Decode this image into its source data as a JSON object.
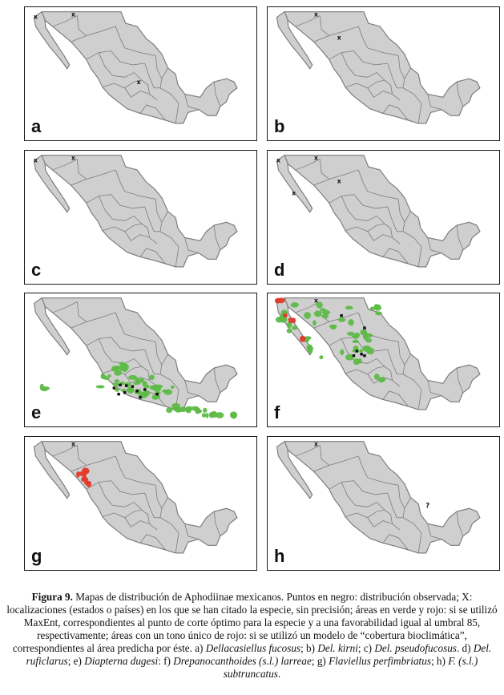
{
  "panels": [
    {
      "letter": "a",
      "marks": [
        {
          "glyph": "x",
          "pos": "nw-coast"
        },
        {
          "glyph": "x",
          "pos": "north-border"
        },
        {
          "glyph": "x",
          "pos": "central"
        }
      ],
      "green_areas": false,
      "red_areas": false
    },
    {
      "letter": "b",
      "marks": [
        {
          "glyph": "x",
          "pos": "north-border"
        },
        {
          "glyph": "x",
          "pos": "north-central"
        }
      ],
      "green_areas": false,
      "red_areas": false
    },
    {
      "letter": "c",
      "marks": [
        {
          "glyph": "x",
          "pos": "nw-coast"
        },
        {
          "glyph": "x",
          "pos": "north-border"
        }
      ],
      "green_areas": false,
      "red_areas": false
    },
    {
      "letter": "d",
      "marks": [
        {
          "glyph": "x",
          "pos": "nw-coast"
        },
        {
          "glyph": "x",
          "pos": "north-border"
        },
        {
          "glyph": "x",
          "pos": "north-central"
        },
        {
          "glyph": "x",
          "pos": "baja"
        }
      ],
      "green_areas": false,
      "red_areas": false
    },
    {
      "letter": "e",
      "marks": [],
      "green_areas": true,
      "red_areas": false
    },
    {
      "letter": "f",
      "marks": [
        {
          "glyph": "x",
          "pos": "north-border"
        }
      ],
      "green_areas": true,
      "red_areas": true
    },
    {
      "letter": "g",
      "marks": [
        {
          "glyph": "x",
          "pos": "north-border"
        }
      ],
      "green_areas": false,
      "red_areas": true
    },
    {
      "letter": "h",
      "marks": [
        {
          "glyph": "x",
          "pos": "north-border"
        },
        {
          "glyph": "?",
          "pos": "gulf"
        }
      ],
      "green_areas": false,
      "red_areas": false
    }
  ],
  "colors": {
    "land": "#cfcfcf",
    "border": "#7a7a7a",
    "frame": "#1a1a1a",
    "green": "#5dbb46",
    "red": "#e23b2a",
    "points": "#111111"
  },
  "caption": {
    "label": "Figura 9.",
    "seg1": " Mapas de distribución de Aphodiinae mexicanos. Puntos en negro: distribución observada; X: localizaciones (estados o países) en los que se han citado la especie, sin precisión; áreas en verde y rojo: si se utilizó MaxEnt, correspondientes al punto de corte óptimo para la especie y a una favorabilidad igual al umbral 85, respectivamente; áreas con un tono único de rojo: si se utilizó un modelo de “cobertura bioclimática”, correspondientes al área predicha por éste. a) ",
    "sp_a": "Dellacasiellus fucosus",
    "sep_b": "; b) ",
    "sp_b": "Del. kirni",
    "sep_c": "; c) ",
    "sp_c": "Del. pseudofucosus",
    "sep_d": ". d) ",
    "sp_d": "Del. ruficlarus",
    "sep_e": "; e) ",
    "sp_e": "Diapterna dugesi",
    "sep_f": ": f) ",
    "sp_f": "Drepanocanthoides (s.l.) larreae",
    "sep_g": "; g) ",
    "sp_g": "Flaviellus perfimbriatus",
    "sep_h": "; h) ",
    "sp_h": "F. (s.l.) subtruncatus",
    "end": "."
  }
}
